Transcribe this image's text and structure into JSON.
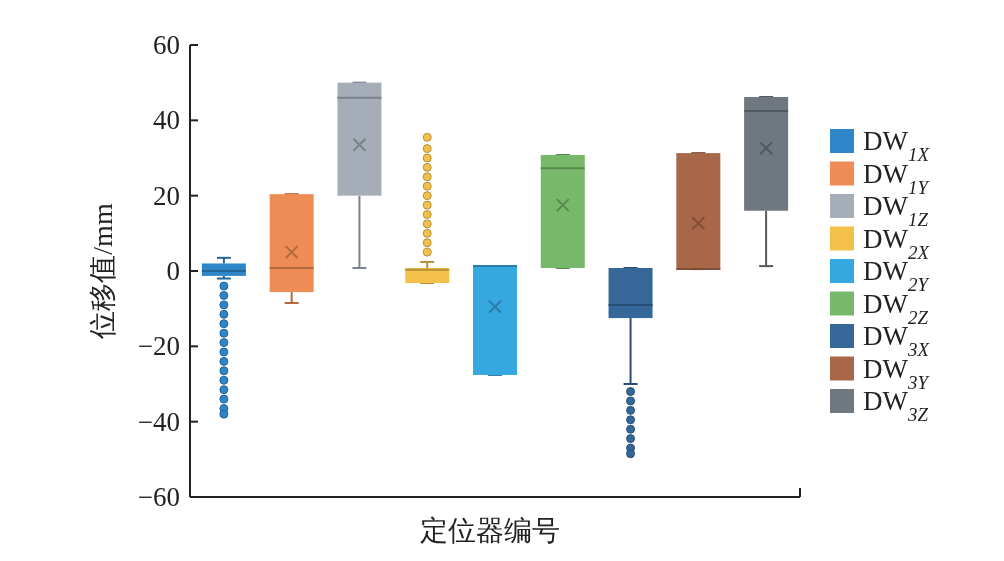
{
  "chart_data": {
    "type": "box",
    "xlabel": "定位器编号",
    "ylabel": "位移值/mm",
    "categories": [
      null,
      null,
      null,
      null,
      null,
      null,
      null,
      null,
      null
    ],
    "ylim": [
      -60,
      60
    ],
    "yticks": [
      -60,
      -40,
      -20,
      0,
      20,
      40,
      60
    ],
    "legend": "right",
    "series": [
      {
        "name": "DW$_{1X}$",
        "color": "#2e86c8",
        "boxes": [
          {
            "low": -2,
            "q1": -1.3,
            "median": 0,
            "q3": 2,
            "high": 3.5,
            "outliers": [
              -4,
              -6.5,
              -9,
              -11.5,
              -14,
              -16.5,
              -19,
              -21.5,
              -24,
              -26.5,
              -29,
              -31.5,
              -34,
              -36.5,
              -38
            ]
          },
          null,
          null,
          null,
          null,
          null,
          null,
          null,
          null
        ]
      },
      {
        "name": "DW$_{1Y}$",
        "color": "#ee8c55",
        "boxes": [
          null,
          {
            "low": -8.5,
            "q1": -5.6,
            "median": 0.8,
            "q3": 20.4,
            "high": 20.4,
            "mean": 5
          },
          null,
          null,
          null,
          null,
          null,
          null,
          null
        ]
      },
      {
        "name": "DW$_{1Z}$",
        "color": "#a4adb8",
        "boxes": [
          null,
          null,
          {
            "low": 0.8,
            "q1": 20,
            "median": 46,
            "q3": 50,
            "high": 50,
            "mean": 33.5
          },
          null,
          null,
          null,
          null,
          null,
          null
        ]
      },
      {
        "name": "DW$_{2X}$",
        "color": "#f3c04a",
        "boxes": [
          null,
          null,
          null,
          {
            "low": -3.2,
            "q1": -3.2,
            "median": 0.3,
            "q3": 0.8,
            "high": 2.4,
            "outliers": [
              5,
              7.5,
              10,
              12.5,
              15,
              17.5,
              20,
              22.5,
              25,
              27.5,
              30,
              32.5,
              35.5
            ]
          },
          null,
          null,
          null,
          null,
          null
        ]
      },
      {
        "name": "DW$_{2Y}$",
        "color": "#35a8e0",
        "boxes": [
          null,
          null,
          null,
          null,
          {
            "low": -27.6,
            "q1": -27.6,
            "median": 1.3,
            "q3": 1.3,
            "high": 1.3,
            "mean": -9.5
          },
          null,
          null,
          null,
          null
        ]
      },
      {
        "name": "DW$_{2Z}$",
        "color": "#77b86a",
        "boxes": [
          null,
          null,
          null,
          null,
          null,
          {
            "low": 0.8,
            "q1": 0.8,
            "median": 27.3,
            "q3": 30.8,
            "high": 30.8,
            "mean": 17.5
          },
          null,
          null,
          null
        ]
      },
      {
        "name": "DW$_{3X}$",
        "color": "#356899",
        "boxes": [
          null,
          null,
          null,
          null,
          null,
          null,
          {
            "low": -30,
            "q1": -12.5,
            "median": -9,
            "q3": 0.8,
            "high": 0.8,
            "outliers": [
              -32,
              -34.5,
              -37,
              -39.5,
              -42,
              -44.5,
              -47,
              -48.5
            ]
          },
          null,
          null
        ]
      },
      {
        "name": "DW$_{3Y}$",
        "color": "#a9674a",
        "boxes": [
          null,
          null,
          null,
          null,
          null,
          null,
          null,
          {
            "low": 0.5,
            "q1": 0.5,
            "median": 0.5,
            "q3": 31.3,
            "high": 31.3,
            "mean": 12.7
          },
          null
        ]
      },
      {
        "name": "DW$_{3Z}$",
        "color": "#6f7780",
        "boxes": [
          null,
          null,
          null,
          null,
          null,
          null,
          null,
          null,
          {
            "low": 1.3,
            "q1": 16,
            "median": 42.5,
            "q3": 46.2,
            "high": 46.2,
            "mean": 32.6
          }
        ]
      }
    ]
  }
}
